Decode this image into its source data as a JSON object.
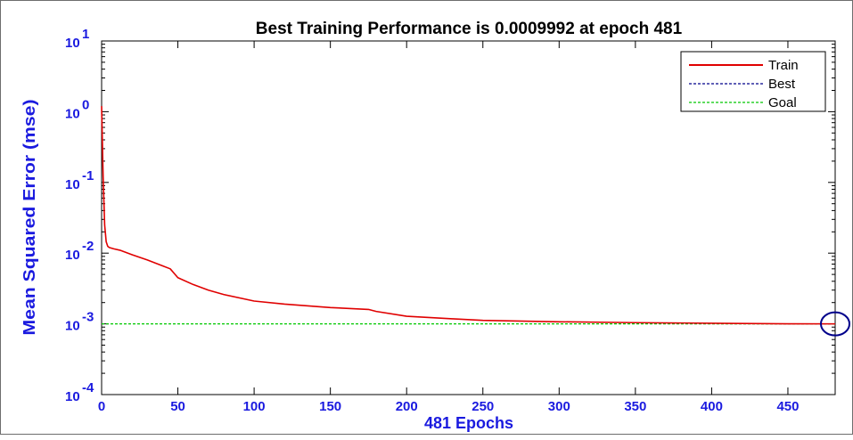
{
  "chart_data": {
    "type": "line",
    "title": "Best Training Performance is 0.0009992 at epoch 481",
    "xlabel": "481 Epochs",
    "ylabel": "Mean Squared Error  (mse)",
    "xlim": [
      0,
      481
    ],
    "ylim": [
      0.0001,
      10
    ],
    "yscale": "log",
    "x_ticks": [
      {
        "value": 0,
        "label": "0"
      },
      {
        "value": 50,
        "label": "50"
      },
      {
        "value": 100,
        "label": "100"
      },
      {
        "value": 150,
        "label": "150"
      },
      {
        "value": 200,
        "label": "200"
      },
      {
        "value": 250,
        "label": "250"
      },
      {
        "value": 300,
        "label": "300"
      },
      {
        "value": 350,
        "label": "350"
      },
      {
        "value": 400,
        "label": "400"
      },
      {
        "value": 450,
        "label": "450"
      }
    ],
    "y_ticks": [
      {
        "value": 10,
        "base": "10",
        "exp": "1"
      },
      {
        "value": 1,
        "base": "10",
        "exp": "0"
      },
      {
        "value": 0.1,
        "base": "10",
        "exp": "-1"
      },
      {
        "value": 0.01,
        "base": "10",
        "exp": "-2"
      },
      {
        "value": 0.001,
        "base": "10",
        "exp": "-3"
      },
      {
        "value": 0.0001,
        "base": "10",
        "exp": "-4"
      }
    ],
    "legend_position": "top-right",
    "series": [
      {
        "name": "Train",
        "color": "#e00000",
        "style": "solid",
        "x": [
          0,
          1,
          2,
          3,
          4,
          5,
          8,
          12,
          20,
          30,
          40,
          45,
          50,
          60,
          70,
          80,
          100,
          120,
          150,
          175,
          180,
          200,
          230,
          250,
          300,
          350,
          400,
          450,
          481
        ],
        "y": [
          1.2,
          0.12,
          0.025,
          0.0145,
          0.0125,
          0.012,
          0.0115,
          0.011,
          0.0095,
          0.008,
          0.0066,
          0.006,
          0.0045,
          0.0036,
          0.003,
          0.0026,
          0.0021,
          0.0019,
          0.0017,
          0.0016,
          0.0015,
          0.00128,
          0.00118,
          0.00112,
          0.00107,
          0.00104,
          0.00102,
          0.001,
          0.0009992
        ]
      },
      {
        "name": "Best",
        "color": "#00008b",
        "style": "dotted",
        "x": [
          481
        ],
        "y": [
          0.0009992
        ]
      },
      {
        "name": "Goal",
        "color": "#00c800",
        "style": "dotted",
        "x": [
          0,
          481
        ],
        "y": [
          0.001,
          0.001
        ]
      }
    ],
    "best_marker": {
      "x": 481,
      "y": 0.0009992,
      "color": "#00008b"
    }
  }
}
